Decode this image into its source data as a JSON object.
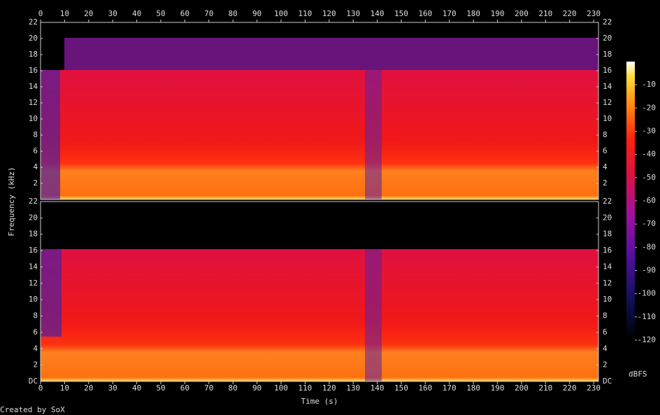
{
  "chart_data": {
    "type": "spectrogram",
    "xlabel": "Time (s)",
    "ylabel": "Frequency (kHz)",
    "xlim": [
      0,
      232
    ],
    "xticks": [
      0,
      10,
      20,
      30,
      40,
      50,
      60,
      70,
      80,
      90,
      100,
      110,
      120,
      130,
      140,
      150,
      160,
      170,
      180,
      190,
      200,
      210,
      220,
      230
    ],
    "channels": [
      {
        "ylim": [
          0,
          22
        ],
        "yticks": [
          2,
          4,
          6,
          8,
          10,
          12,
          14,
          16,
          18,
          20,
          22
        ]
      },
      {
        "ylim": [
          0,
          22
        ],
        "yticks": [
          {
            "value": 0,
            "label": "DC"
          },
          2,
          4,
          6,
          8,
          10,
          12,
          14,
          16,
          18,
          20,
          22
        ]
      }
    ],
    "colorbar": {
      "label": "dBFS",
      "clim": [
        -120,
        0
      ],
      "ticks": [
        -120,
        -110,
        -100,
        -90,
        -80,
        -70,
        -60,
        -50,
        -40,
        -30,
        -20,
        -10
      ]
    },
    "footer": "Created by SoX"
  }
}
